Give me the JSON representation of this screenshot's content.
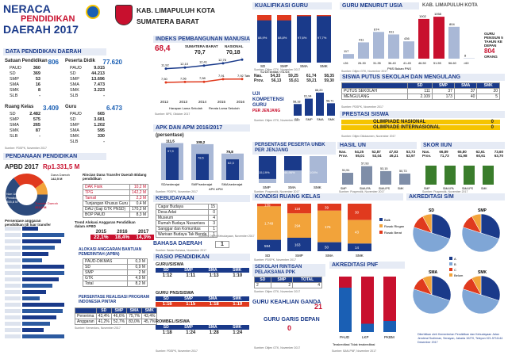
{
  "title": {
    "line1": "NERACA",
    "line2": "PENDIDIKAN",
    "line3": "DAERAH 2017"
  },
  "region": {
    "name": "KAB. LIMAPULUH KOTA",
    "province": "SUMATERA BARAT",
    "corner": "KAB. LIMAPULUH KOTA"
  },
  "data_pendidikan": {
    "header": "DATA PENDIDIKAN DAERAH",
    "satuan": {
      "label": "Satuan Pendidikan",
      "total": "806",
      "rows": [
        [
          "PAUD",
          "360"
        ],
        [
          "SD",
          "369"
        ],
        [
          "SMP",
          "53"
        ],
        [
          "SMA",
          "16"
        ],
        [
          "SMK",
          "8"
        ],
        [
          "SLB",
          "-"
        ]
      ]
    },
    "siswa": {
      "label": "Peserta Didik",
      "total": "77.620",
      "rows": [
        [
          "PAUD",
          "9.015"
        ],
        [
          "SD",
          "44.213"
        ],
        [
          "SMP",
          "13.696"
        ],
        [
          "SMA",
          "7.473"
        ],
        [
          "SMK",
          "3.223"
        ],
        [
          "SLB",
          "-"
        ]
      ]
    },
    "kelas": {
      "label": "Ruang Kelas",
      "total": "3.409",
      "rows": [
        [
          "SD",
          "2.482"
        ],
        [
          "SMP",
          "575"
        ],
        [
          "SMA",
          "265"
        ],
        [
          "SMK",
          "87"
        ],
        [
          "SLB",
          "-"
        ]
      ]
    },
    "guru": {
      "label": "Guru",
      "total": "6.473",
      "rows": [
        [
          "PAUD",
          "665"
        ],
        [
          "SD",
          "3.681"
        ],
        [
          "SMP",
          "1.202"
        ],
        [
          "SMA",
          "595"
        ],
        [
          "SMK",
          "330"
        ],
        [
          "SLB",
          "-"
        ]
      ]
    },
    "source": "Sumber: PDSPK, November 2017"
  },
  "pendanaan": {
    "header": "PENDANAAN PENDIDIKAN",
    "apbd_label": "APBD 2017",
    "apbd_value": "Rp1.331,5 M",
    "donut_a": "Non Urusan Pendidikan",
    "donut_a_val": "855,8 M",
    "donut_b": "Dana Daerah",
    "donut_b_val": "142,5 M",
    "donut_c": "Transfer Daerah",
    "donut_c_val": "333,4 M",
    "rincian_title": "Rincian Dana Transfer Daerah Bidang pendidikan",
    "rincian": [
      [
        "DAK Fisik",
        "10,2 M"
      ],
      [
        "TPG",
        "142,2 M"
      ],
      [
        "Tamsil",
        "2,3 M"
      ],
      [
        "Tunjangan Khusus Guru",
        "0,4 M"
      ],
      [
        "DAU (Gaji GTK PNSD)",
        "170,2 M"
      ],
      [
        "BOP PAUD",
        "8,3 M"
      ]
    ],
    "trend_title": "Trend Alokasi Anggaran Pendidikan dalam APBD",
    "trend_years": [
      "2015",
      "2016",
      "2017"
    ],
    "trend_values": [
      "22,1%",
      "18,4%",
      "14,3%"
    ],
    "bantuan_title": "ALOKASI ANGGARAN BANTUAN PEMERINTAH (APBN)",
    "bantuan": [
      [
        "PAUD-DIKMAS",
        "0,3 M"
      ],
      [
        "SD",
        "0,9 M"
      ],
      [
        "SMP",
        "2 M"
      ],
      [
        "GTK",
        "4,9 M"
      ],
      [
        "Total",
        "8,2 M"
      ]
    ],
    "realisasi_title": "PERSENTASE REALISASI PROGRAM INDONESIA PINTAR",
    "realisasi_head": [
      "",
      "SD",
      "SMP",
      "SMA",
      "SMK"
    ],
    "realisasi": [
      [
        "Penerima",
        "43,4%",
        "46,6%",
        "75,7%",
        "43,4%"
      ],
      [
        "Anggaran",
        "41,2%",
        "52,7%",
        "83,0%",
        "45,7%"
      ]
    ],
    "persentase_title": "Persentase anggaran pendidikan (di luar transfer daerah)",
    "source": "Sumber: Kemenkeu, November 2017"
  },
  "ipm": {
    "header": "INDEKS PEMBANGUNAN MANUSIA 2016",
    "value": "68,4",
    "sumbar": "SUMATERA BARAT",
    "sumbar_val": "70,7",
    "nasional": "NASIONAL",
    "nasional_val": "70,18",
    "years": [
      "2012",
      "2013",
      "2014",
      "2015",
      "2016"
    ],
    "top": [
      "11,92",
      "12,10",
      "12,41",
      "12,76",
      "13,35 Tahun"
    ],
    "bottom": [
      "7,50",
      "7,56",
      "7,58",
      "7,91",
      "7,92 Tahun"
    ],
    "leg_a": "Harapan Lama Sekolah",
    "leg_b": "Rerata Lama Sekolah",
    "source": "Sumber: BPS, Oktober 2017"
  },
  "apk": {
    "header": "APK DAN APM 2016/2017",
    "sub": "(persentase)",
    "cats": [
      "SD/sederajat",
      "SMP/sederajat",
      "SMA/sederajat"
    ],
    "apk": [
      111.5,
      108.2,
      79.8
    ],
    "apm": [
      97.9,
      78.5,
      62.3
    ],
    "apk_l": [
      "111,5",
      "108,2",
      "79,8"
    ],
    "apm_l": [
      "97,9",
      "78,5",
      "62,3"
    ],
    "leg": [
      "APK",
      "APM"
    ],
    "source": "Sumber: PDSPK, November 2017"
  },
  "kebudayaan": {
    "header": "KEBUDAYAAN",
    "rows": [
      [
        "Cagar Budaya",
        "15"
      ],
      [
        "Desa Adat",
        "0"
      ],
      [
        "Museum",
        "4"
      ],
      [
        "Rumah Budaya Nusantara",
        "3"
      ],
      [
        "Sanggar dan Komunitas",
        "1"
      ],
      [
        "Warisan Budaya Tak Benda",
        "1"
      ]
    ],
    "source": "Sumber: Ditjen Kebudayaan, November 2017"
  },
  "bahasa": {
    "header": "BAHASA DAERAH",
    "value": "1",
    "source": "Sumber: Badan Bahasa, November 2017"
  },
  "rasio": {
    "header": "RASIO PENDIDIKAN",
    "cols": [
      "SD",
      "SMP",
      "SMA",
      "SMK"
    ],
    "gs": {
      "label": "GURU/SISWA",
      "vals": [
        "1:12",
        "1:11",
        "1:13",
        "1:10"
      ]
    },
    "gps": {
      "label": "GURU PNS/SISWA",
      "vals": [
        "1:16",
        "1:15",
        "1:18",
        "1:19"
      ]
    },
    "rombel": {
      "label": "ROMBEL/SISWA",
      "vals": [
        "1:18",
        "1:24",
        "1:28",
        "1:24"
      ]
    },
    "source": "Sumber: PDSPK, November 2017"
  },
  "kualifikasi": {
    "header": "KUALIFIKASI GURU",
    "cats": [
      "SD",
      "SMP",
      "SMA",
      "SMK"
    ],
    "vals": [
      "88,9%",
      "88,8%",
      "97,6%",
      "97,7%"
    ],
    "leg_a": "S1/D4 keatas",
    "leg_b": "<S1/D4",
    "source": "Sumber: Ditjen GTK, November 2017"
  },
  "unbk": {
    "rows": [
      [
        "Nas.",
        "54,33",
        "59,25",
        "61,74",
        "58,35"
      ],
      [
        "Prov.",
        "56,13",
        "55,61",
        "59,21",
        "59,30"
      ]
    ],
    "header": "UJI KOMPETENSI GURU",
    "sub": "PER JENJANG",
    "cats": [
      "SD",
      "SMP",
      "SMA",
      "SMK"
    ],
    "vals": [
      58.18,
      61.94,
      66.2,
      58.71
    ],
    "labels": [
      "58,18",
      "61,94",
      "66,20",
      "58,71"
    ],
    "source": "Sumber: Ditjen GTK, November 2017"
  },
  "usia": {
    "header": "GURU MENURUT USIA",
    "cats": [
      "<26",
      "26-30",
      "31-35",
      "36-40",
      "41-45",
      "46-50",
      "51-55",
      "56-60",
      ">60"
    ],
    "vals": [
      117,
      411,
      674,
      611,
      436,
      1002,
      1058,
      804,
      8
    ],
    "pensiun_title": "GURU PENSIUN 5 TAHUN KE DEPAN",
    "pensiun_val": "804",
    "pensiun_unit": "ORANG",
    "leg": [
      "PNS",
      "Bukan PNS"
    ],
    "source": "Sumber: Ditjen GTK, November 2017"
  },
  "putus": {
    "header": "SISWA PUTUS SEKOLAH DAN MENGULANG",
    "cols": [
      "SD",
      "SMP",
      "SMA",
      "SMK"
    ],
    "rows": [
      [
        "PUTUS SEKOLAH",
        "111",
        "37",
        "37",
        "20"
      ],
      [
        "MENGULANG",
        "2.109",
        "173",
        "40",
        "5"
      ]
    ],
    "source": "Sumber: PDSPK, November 2017"
  },
  "prestasi": {
    "header": "PRESTASI SISWA",
    "rows": [
      [
        "OLIMPIADE NASIONAL",
        "0"
      ],
      [
        "OLIMPIADE INTERNASIONAL",
        "0"
      ]
    ],
    "source": "Sumber: Ditjen Dikdasmen, November 2017"
  },
  "unbk_peserta": {
    "header": "PERSENTASE PESERTA UNBK PER JENJANG",
    "cats": [
      "SMP",
      "SMA",
      "SMK"
    ],
    "vals": [
      "15,19%",
      "46,96%",
      "100%"
    ],
    "source": "Sumber: Puspendik, November 2017"
  },
  "hasil_un": {
    "header": "HASIL UN",
    "nas": [
      "54,25",
      "52,87",
      "47,83",
      "53,73"
    ],
    "prov": [
      "55,01",
      "53,04",
      "49,21",
      "52,97"
    ],
    "cats": [
      "SMP",
      "SMA IPA",
      "SMA IPS",
      "SMK"
    ],
    "vals": [
      51.51,
      57.93,
      53.15,
      50.73
    ],
    "labels": [
      "51,51",
      "57,93",
      "53,15",
      "50,73"
    ],
    "source": "Sumber: Puspendik, November 2017"
  },
  "skor_iiun": {
    "header": "SKOR IIUN",
    "nas": [
      "66,89",
      "65,80",
      "62,61",
      "73,60"
    ],
    "prov": [
      "71,73",
      "61,98",
      "60,61",
      "63,70"
    ],
    "cats": [
      "SMP",
      "SMA IPA",
      "SMA IPS",
      "SMK"
    ],
    "source": "Sumber: Puspendik, November 2017"
  },
  "kondisi": {
    "header": "KONDISI RUANG KELAS",
    "cats": [
      "SD",
      "SMP",
      "SMA",
      "SMK"
    ],
    "baik": [
      "594",
      "163",
      "50",
      "14"
    ],
    "ringan": [
      "1.749",
      "294",
      "176",
      "43"
    ],
    "berat": [
      "139",
      "118",
      "39",
      "30"
    ],
    "leg": [
      "Baik",
      "Rusak Ringan",
      "Rusak Berat"
    ],
    "source": "Sumber: PDSPK, November 2017"
  },
  "ppk": {
    "header": "SEKOLAH RINTISAN PELAKSANA PPK",
    "cols": [
      "SD",
      "SMP",
      "TOTAL"
    ],
    "vals": [
      "2",
      "2",
      "4"
    ],
    "source": "Sumber: Ditjen GTK, November 2017"
  },
  "ganda": {
    "header": "GURU KEAHLIAN GANDA",
    "value": "21"
  },
  "garis": {
    "header": "GURU GARIS DEPAN",
    "value": "0",
    "source": "Sumber: Ditjen GTK, November 2017"
  },
  "pnf": {
    "header": "AKREDITASI PNF",
    "cats": [
      "PAUD",
      "LKP",
      "PKBM"
    ],
    "leg": [
      "Terakreditasi",
      "Tidak terakreditasi"
    ],
    "source": "Sumber: BAN-PNF, November 2017"
  },
  "akreditasi": {
    "header": "AKREDITASI S/M",
    "sd": "SD",
    "smp": "SMP",
    "sma": "SMA",
    "smk": "SMK",
    "leg": [
      "A",
      "B",
      "C",
      "Belum"
    ],
    "source": "Sumber: BAN-S/M, November 2017"
  },
  "footer": "Diterbitkan oleh Kementerian Pendidikan dan Kebudayaan Jalan Jenderal Sudirman, Senayan, Jakarta 10270, Telepon 021-5711144 Desember 2017"
}
